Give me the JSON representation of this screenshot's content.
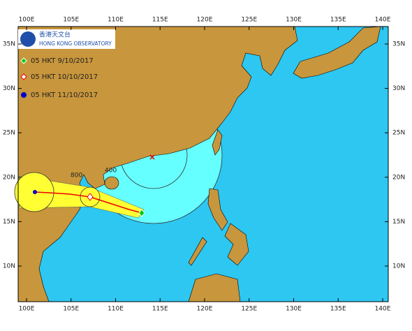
{
  "logo": {
    "chinese": "香港天文台",
    "english": "HONG KONG OBSERVATORY"
  },
  "legend": [
    "05 HKT 9/10/2017",
    "05 HKT 10/10/2017",
    "05 HKT 11/10/2017"
  ],
  "lon_labels": [
    "100E",
    "105E",
    "110E",
    "115E",
    "120E",
    "125E",
    "130E",
    "135E",
    "140E"
  ],
  "lat_labels": [
    "35N",
    "30N",
    "25N",
    "20N",
    "15N",
    "10N"
  ],
  "range_labels": [
    "400",
    "800"
  ]
}
